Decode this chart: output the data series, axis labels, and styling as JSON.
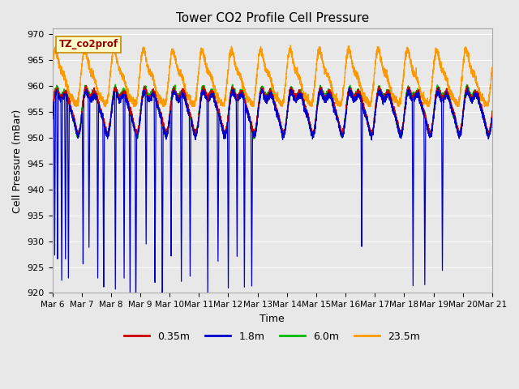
{
  "title": "Tower CO2 Profile Cell Pressure",
  "ylabel": "Cell Pressure (mBar)",
  "xlabel": "Time",
  "annotation": "TZ_co2prof",
  "ylim": [
    920,
    971
  ],
  "yticks": [
    920,
    925,
    930,
    935,
    940,
    945,
    950,
    955,
    960,
    965,
    970
  ],
  "legend_labels": [
    "0.35m",
    "1.8m",
    "6.0m",
    "23.5m"
  ],
  "line_colors": [
    "#cc0000",
    "#0000cc",
    "#00bb00",
    "#ff9900"
  ],
  "background_color": "#e8e8e8",
  "plot_bg_color": "#e8e8e8",
  "grid_color": "#ffffff",
  "title_fontsize": 11,
  "axis_label_fontsize": 9,
  "tick_fontsize": 8
}
